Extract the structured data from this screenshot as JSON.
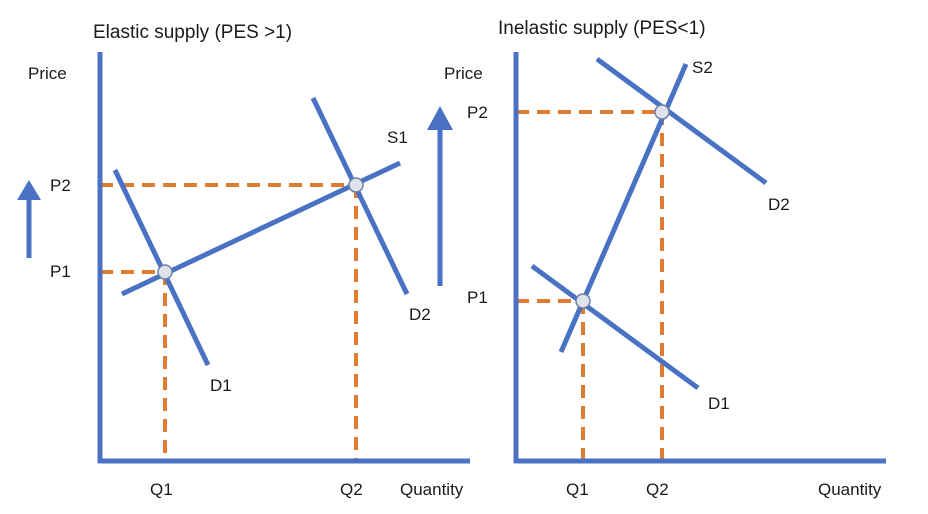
{
  "colors": {
    "line": "#4a72c4",
    "dash": "#e07b32",
    "point_fill": "#dfe3ea",
    "point_stroke": "#6d7fa8"
  },
  "left": {
    "title": "Elastic supply (PES >1)",
    "y_axis_label": "Price",
    "x_axis_label": "Quantity",
    "supply_label": "S1",
    "demand_labels": [
      "D1",
      "D2"
    ],
    "price_labels": [
      "P1",
      "P2"
    ],
    "quantity_labels": [
      "Q1",
      "Q2"
    ],
    "shift_arrow": "up-arrow"
  },
  "right": {
    "title": "Inelastic supply (PES<1)",
    "y_axis_label": "Price",
    "x_axis_label": "Quantity",
    "supply_label": "S2",
    "demand_labels": [
      "D1",
      "D2"
    ],
    "price_labels": [
      "P1",
      "P2"
    ],
    "quantity_labels": [
      "Q1",
      "Q2"
    ]
  }
}
